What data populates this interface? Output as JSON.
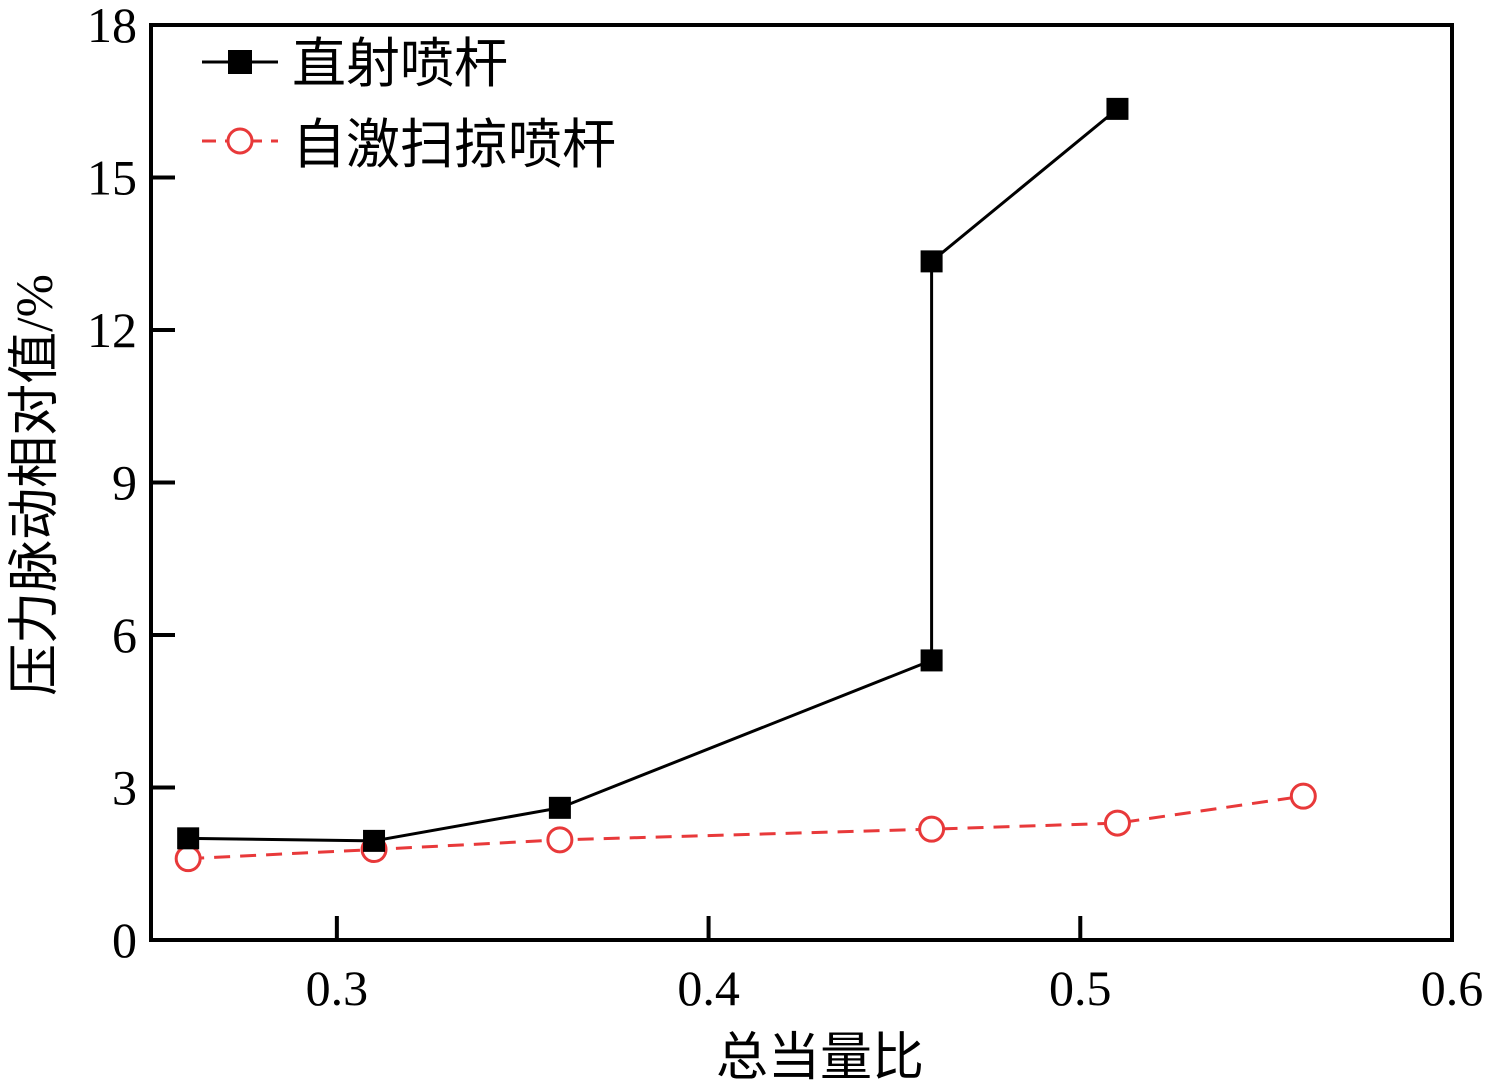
{
  "chart_data": {
    "type": "line",
    "title": "",
    "xlabel": "总当量比",
    "ylabel": "压力脉动相对值/%",
    "xlim": [
      0.25,
      0.6
    ],
    "ylim": [
      0,
      18
    ],
    "xticks": [
      0.3,
      0.4,
      0.5,
      0.6
    ],
    "xtick_labels": [
      "0.3",
      "0.4",
      "0.5",
      "0.6"
    ],
    "yticks": [
      0,
      3,
      6,
      9,
      12,
      15,
      18
    ],
    "ytick_labels": [
      "0",
      "3",
      "6",
      "9",
      "12",
      "15",
      "18"
    ],
    "grid": false,
    "legend_position": "top-left",
    "series": [
      {
        "name": "直射喷杆",
        "color": "#000000",
        "marker": "square",
        "dash": "solid",
        "x": [
          0.26,
          0.31,
          0.36,
          0.46,
          0.46,
          0.51
        ],
        "y": [
          2.0,
          1.95,
          2.6,
          5.5,
          13.35,
          16.35
        ]
      },
      {
        "name": "自激扫掠喷杆",
        "color": "#e8393a",
        "marker": "open-circle",
        "dash": "dashed",
        "x": [
          0.26,
          0.31,
          0.36,
          0.46,
          0.51,
          0.56
        ],
        "y": [
          1.6,
          1.78,
          1.97,
          2.18,
          2.3,
          2.83
        ]
      }
    ]
  }
}
